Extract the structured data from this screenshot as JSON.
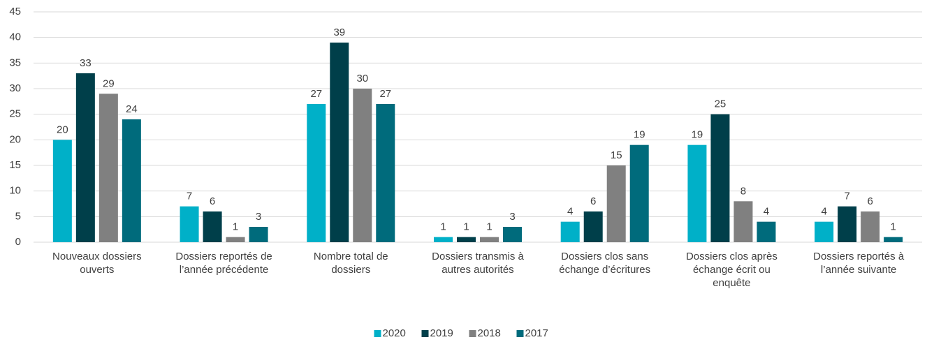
{
  "chart_data": {
    "type": "bar",
    "categories": [
      "Nouveaux dossiers ouverts",
      "Dossiers reportés de l’année précédente",
      "Nombre total de dossiers",
      "Dossiers transmis à autres autorités",
      "Dossiers clos sans échange d’écritures",
      "Dossiers clos après échange écrit ou enquête",
      "Dossiers reportés à l’année suivante"
    ],
    "series": [
      {
        "name": "2020",
        "color": "#00b0c8",
        "values": [
          20,
          7,
          27,
          1,
          4,
          19,
          4
        ]
      },
      {
        "name": "2019",
        "color": "#003f4a",
        "values": [
          33,
          6,
          39,
          1,
          6,
          25,
          7
        ]
      },
      {
        "name": "2018",
        "color": "#808080",
        "values": [
          29,
          1,
          30,
          1,
          15,
          8,
          6
        ]
      },
      {
        "name": "2017",
        "color": "#006b7c",
        "values": [
          24,
          3,
          27,
          3,
          19,
          4,
          1
        ]
      }
    ],
    "ylim": [
      0,
      45
    ],
    "yticks": [
      0,
      5,
      10,
      15,
      20,
      25,
      30,
      35,
      40,
      45
    ],
    "grid": true,
    "legend": "bottom"
  }
}
